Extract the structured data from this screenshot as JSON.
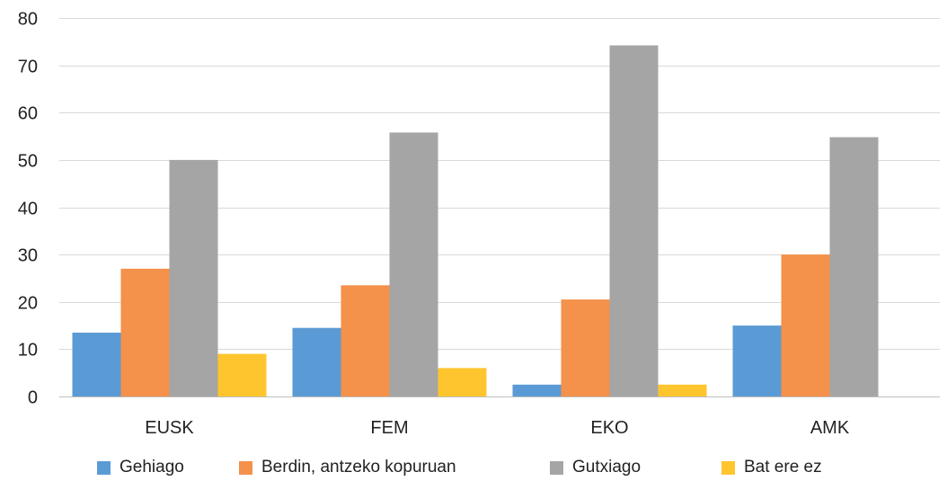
{
  "chart_data": {
    "type": "bar",
    "title": "",
    "xlabel": "",
    "ylabel": "",
    "ylim": [
      0,
      80
    ],
    "yticks": [
      0,
      10,
      20,
      30,
      40,
      50,
      60,
      70,
      80
    ],
    "grid": true,
    "legend_position": "bottom",
    "categories": [
      "EUSK",
      "FEM",
      "EKO",
      "AMK"
    ],
    "series": [
      {
        "name": "Gehiago",
        "color": "#5B9BD5",
        "values": [
          13.5,
          14.5,
          2.5,
          15
        ]
      },
      {
        "name": "Berdin, antzeko kopuruan",
        "color": "#F4914B",
        "values": [
          27,
          23.5,
          20.5,
          30
        ]
      },
      {
        "name": "Gutxiago",
        "color": "#A5A5A5",
        "values": [
          50,
          55.8,
          74.2,
          54.8
        ]
      },
      {
        "name": "Bat ere ez",
        "color": "#FFC52E",
        "values": [
          9,
          6,
          2.5,
          0
        ]
      }
    ]
  }
}
